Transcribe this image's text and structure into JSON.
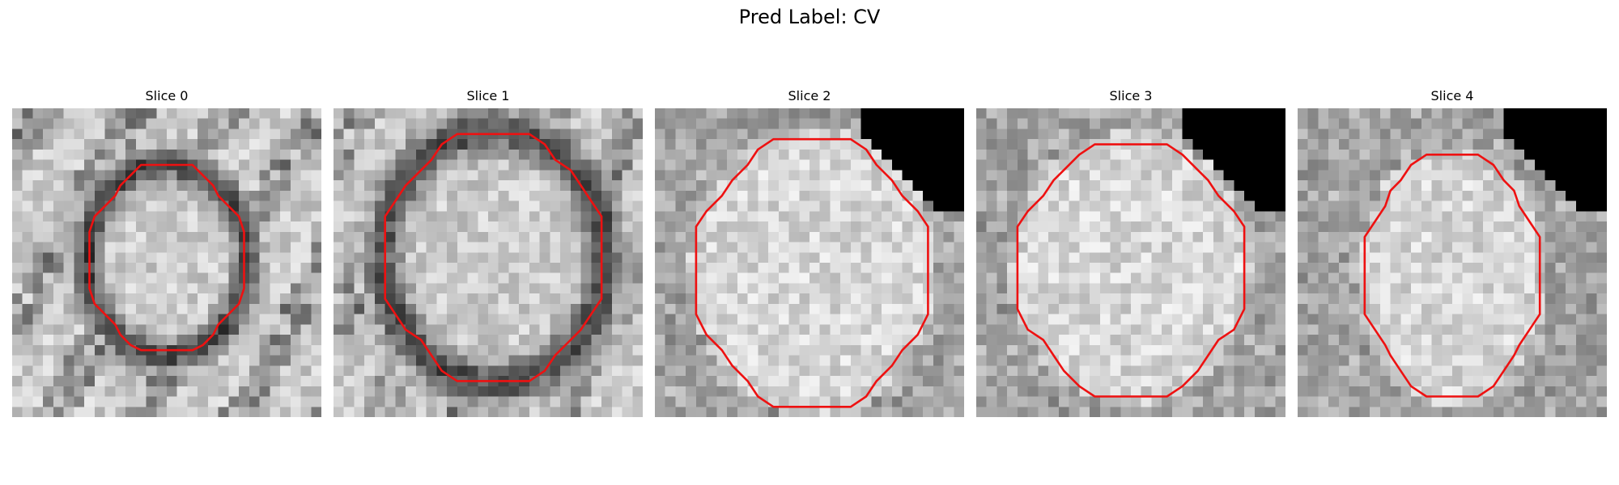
{
  "figure": {
    "title": "Pred Label: CV",
    "contour_color": "#ee1111",
    "panels": [
      {
        "title": "Slice 0",
        "seed": 11,
        "center": [
          0.5,
          0.49
        ],
        "rx": 0.26,
        "ry": 0.31,
        "ring": true,
        "ring_dark": 0.48,
        "black_corner": false
      },
      {
        "title": "Slice 1",
        "seed": 23,
        "center": [
          0.52,
          0.48
        ],
        "rx": 0.36,
        "ry": 0.41,
        "ring": true,
        "ring_dark": 0.45,
        "black_corner": false
      },
      {
        "title": "Slice 2",
        "seed": 37,
        "center": [
          0.51,
          0.53
        ],
        "rx": 0.38,
        "ry": 0.45,
        "ring": false,
        "ring_dark": 0.0,
        "black_corner": true
      },
      {
        "title": "Slice 3",
        "seed": 41,
        "center": [
          0.5,
          0.52
        ],
        "rx": 0.37,
        "ry": 0.42,
        "ring": false,
        "ring_dark": 0.0,
        "black_corner": true
      },
      {
        "title": "Slice 4",
        "seed": 53,
        "center": [
          0.5,
          0.54
        ],
        "rx": 0.29,
        "ry": 0.4,
        "ring": false,
        "ring_dark": 0.0,
        "black_corner": true
      }
    ]
  }
}
